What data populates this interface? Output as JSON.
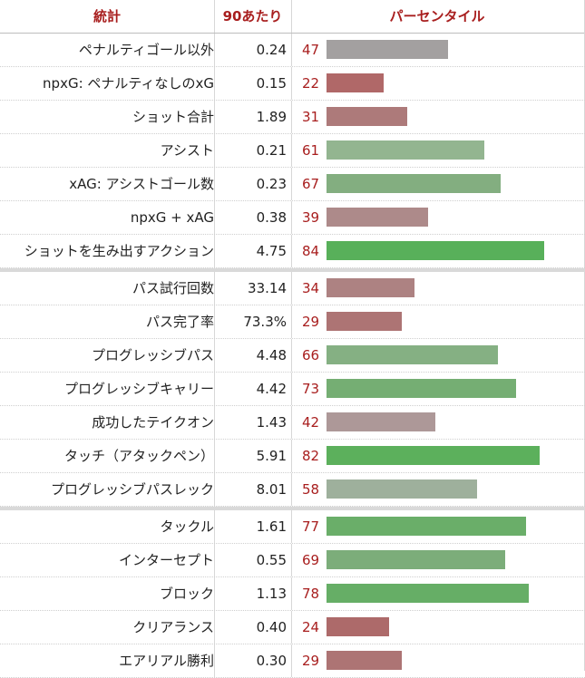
{
  "header": {
    "stat": "統計",
    "per90": "90あたり",
    "percentile": "パーセンタイル"
  },
  "colors": {
    "header_text": "#a81e1e",
    "percentile_text": "#a81e1e"
  },
  "chart_data": {
    "type": "bar",
    "orientation": "horizontal",
    "xlim": [
      0,
      100
    ],
    "groups": [
      {
        "rows": [
          {
            "stat": "ペナルティゴール以外",
            "per90": "0.24",
            "percentile": 47,
            "color": "#a3a0a0"
          },
          {
            "stat": "npxG: ペナルティなしのxG",
            "per90": "0.15",
            "percentile": 22,
            "color": "#b06868"
          },
          {
            "stat": "ショット合計",
            "per90": "1.89",
            "percentile": 31,
            "color": "#ad7a7a"
          },
          {
            "stat": "アシスト",
            "per90": "0.21",
            "percentile": 61,
            "color": "#93b590"
          },
          {
            "stat": "xAG: アシストゴール数",
            "per90": "0.23",
            "percentile": 67,
            "color": "#83ae80"
          },
          {
            "stat": "npxG + xAG",
            "per90": "0.38",
            "percentile": 39,
            "color": "#ad8a8a"
          },
          {
            "stat": "ショットを生み出すアクション",
            "per90": "4.75",
            "percentile": 84,
            "color": "#58b05a"
          }
        ]
      },
      {
        "rows": [
          {
            "stat": "パス試行回数",
            "per90": "33.14",
            "percentile": 34,
            "color": "#ad8282"
          },
          {
            "stat": "パス完了率",
            "per90": "73.3%",
            "percentile": 29,
            "color": "#ad7474"
          },
          {
            "stat": "プログレッシブパス",
            "per90": "4.48",
            "percentile": 66,
            "color": "#85b083"
          },
          {
            "stat": "プログレッシブキャリー",
            "per90": "4.42",
            "percentile": 73,
            "color": "#75ae73"
          },
          {
            "stat": "成功したテイクオン",
            "per90": "1.43",
            "percentile": 42,
            "color": "#ad9898"
          },
          {
            "stat": "タッチ（アタックペン）",
            "per90": "5.91",
            "percentile": 82,
            "color": "#5cb05c"
          },
          {
            "stat": "プログレッシブパスレック",
            "per90": "8.01",
            "percentile": 58,
            "color": "#9eb09c"
          }
        ]
      },
      {
        "rows": [
          {
            "stat": "タックル",
            "per90": "1.61",
            "percentile": 77,
            "color": "#6aae69"
          },
          {
            "stat": "インターセプト",
            "per90": "0.55",
            "percentile": 69,
            "color": "#7cad7a"
          },
          {
            "stat": "ブロック",
            "per90": "1.13",
            "percentile": 78,
            "color": "#66ae66"
          },
          {
            "stat": "クリアランス",
            "per90": "0.40",
            "percentile": 24,
            "color": "#ad6a6a"
          },
          {
            "stat": "エアリアル勝利",
            "per90": "0.30",
            "percentile": 29,
            "color": "#ad7474"
          }
        ]
      }
    ]
  }
}
